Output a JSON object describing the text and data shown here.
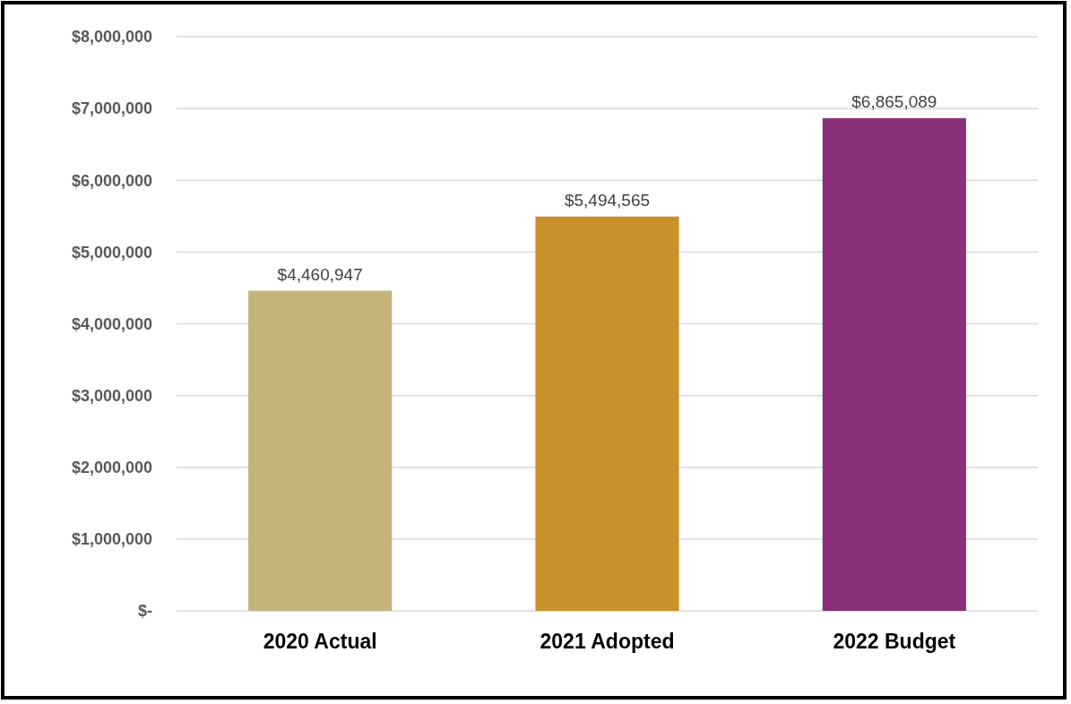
{
  "chart_data": {
    "type": "bar",
    "categories": [
      "2020 Actual",
      "2021 Adopted",
      "2022 Budget"
    ],
    "values": [
      4460947,
      5494565,
      6865089
    ],
    "colors": [
      "#c4b47c",
      "#c9902c",
      "#8b2f7a"
    ],
    "value_labels": [
      "$4,460,947",
      "$5,494,565",
      "$6,865,089"
    ],
    "ylim": [
      0,
      8000000
    ],
    "yticks": [
      {
        "value": 0,
        "label": "$-"
      },
      {
        "value": 1000000,
        "label": "$1,000,000"
      },
      {
        "value": 2000000,
        "label": "$2,000,000"
      },
      {
        "value": 3000000,
        "label": "$3,000,000"
      },
      {
        "value": 4000000,
        "label": "$4,000,000"
      },
      {
        "value": 5000000,
        "label": "$5,000,000"
      },
      {
        "value": 6000000,
        "label": "$6,000,000"
      },
      {
        "value": 7000000,
        "label": "$7,000,000"
      },
      {
        "value": 8000000,
        "label": "$8,000,000"
      }
    ],
    "grid": "y"
  }
}
